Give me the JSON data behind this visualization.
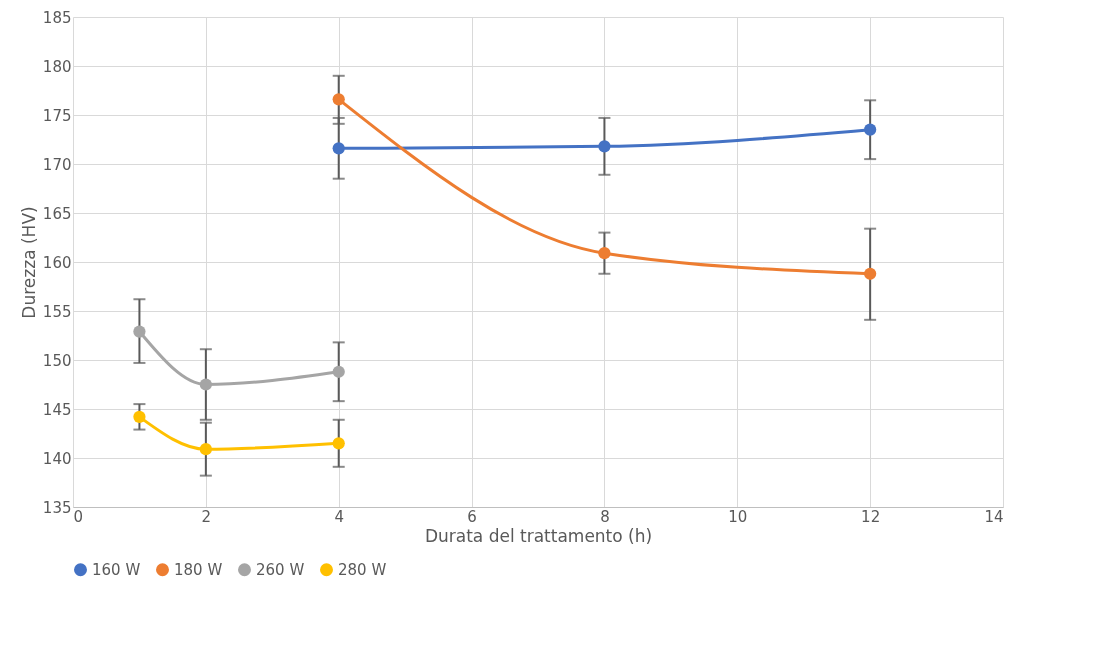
{
  "chart_data": {
    "type": "line",
    "xlabel": "Durata del trattamento (h)",
    "ylabel": "Durezza (HV)",
    "xlim": [
      0,
      14
    ],
    "xticks": [
      0,
      2,
      4,
      6,
      8,
      10,
      12,
      14
    ],
    "ylim": [
      135,
      185
    ],
    "yticks": [
      135,
      140,
      145,
      150,
      155,
      160,
      165,
      170,
      175,
      180,
      185
    ],
    "grid": true,
    "legend": "bottom",
    "marker": "circle",
    "line_style": "solid",
    "series": [
      {
        "name": "160 W",
        "color": "#4472c4",
        "x": [
          4,
          8,
          12
        ],
        "values": [
          171.6,
          171.8,
          173.5
        ],
        "errors": [
          [
            168.5,
            174.7
          ],
          [
            168.9,
            174.7
          ],
          [
            170.5,
            176.5
          ]
        ]
      },
      {
        "name": "180 W",
        "color": "#ed7d31",
        "x": [
          4,
          8,
          12
        ],
        "values": [
          176.6,
          160.9,
          158.8
        ],
        "errors": [
          [
            174.1,
            179.0
          ],
          [
            158.8,
            163.0
          ],
          [
            154.1,
            163.4
          ]
        ]
      },
      {
        "name": "260 W",
        "color": "#a5a5a5",
        "x": [
          1,
          2,
          4
        ],
        "values": [
          152.9,
          147.5,
          148.8
        ],
        "errors": [
          [
            149.7,
            156.2
          ],
          [
            143.9,
            151.1
          ],
          [
            145.8,
            151.8
          ]
        ]
      },
      {
        "name": "280 W",
        "color": "#ffc000",
        "x": [
          1,
          2,
          4
        ],
        "values": [
          144.2,
          140.9,
          141.5
        ],
        "errors": [
          [
            142.9,
            145.5
          ],
          [
            138.2,
            143.6
          ],
          [
            139.1,
            143.9
          ]
        ]
      }
    ]
  }
}
